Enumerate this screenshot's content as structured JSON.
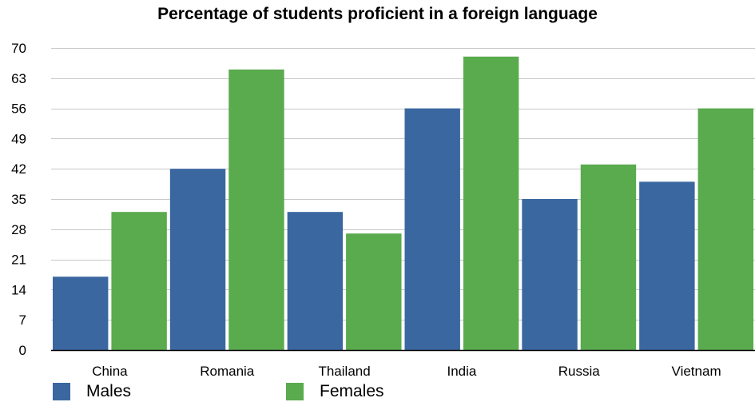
{
  "chart_data": {
    "type": "bar",
    "title": "Percentage of students proficient in a foreign language",
    "xlabel": "",
    "ylabel": "",
    "categories": [
      "China",
      "Romania",
      "Thailand",
      "India",
      "Russia",
      "Vietnam"
    ],
    "series": [
      {
        "name": "Males",
        "color": "#3a67a0",
        "values": [
          17,
          42,
          32,
          56,
          35,
          39
        ]
      },
      {
        "name": "Females",
        "color": "#5aaa4e",
        "values": [
          32,
          65,
          27,
          68,
          43,
          56
        ]
      }
    ],
    "ylim": [
      0,
      70
    ],
    "yticks": [
      0,
      7,
      14,
      21,
      28,
      35,
      42,
      49,
      56,
      63,
      70
    ],
    "grid": true,
    "legend_position": "bottom-left"
  }
}
